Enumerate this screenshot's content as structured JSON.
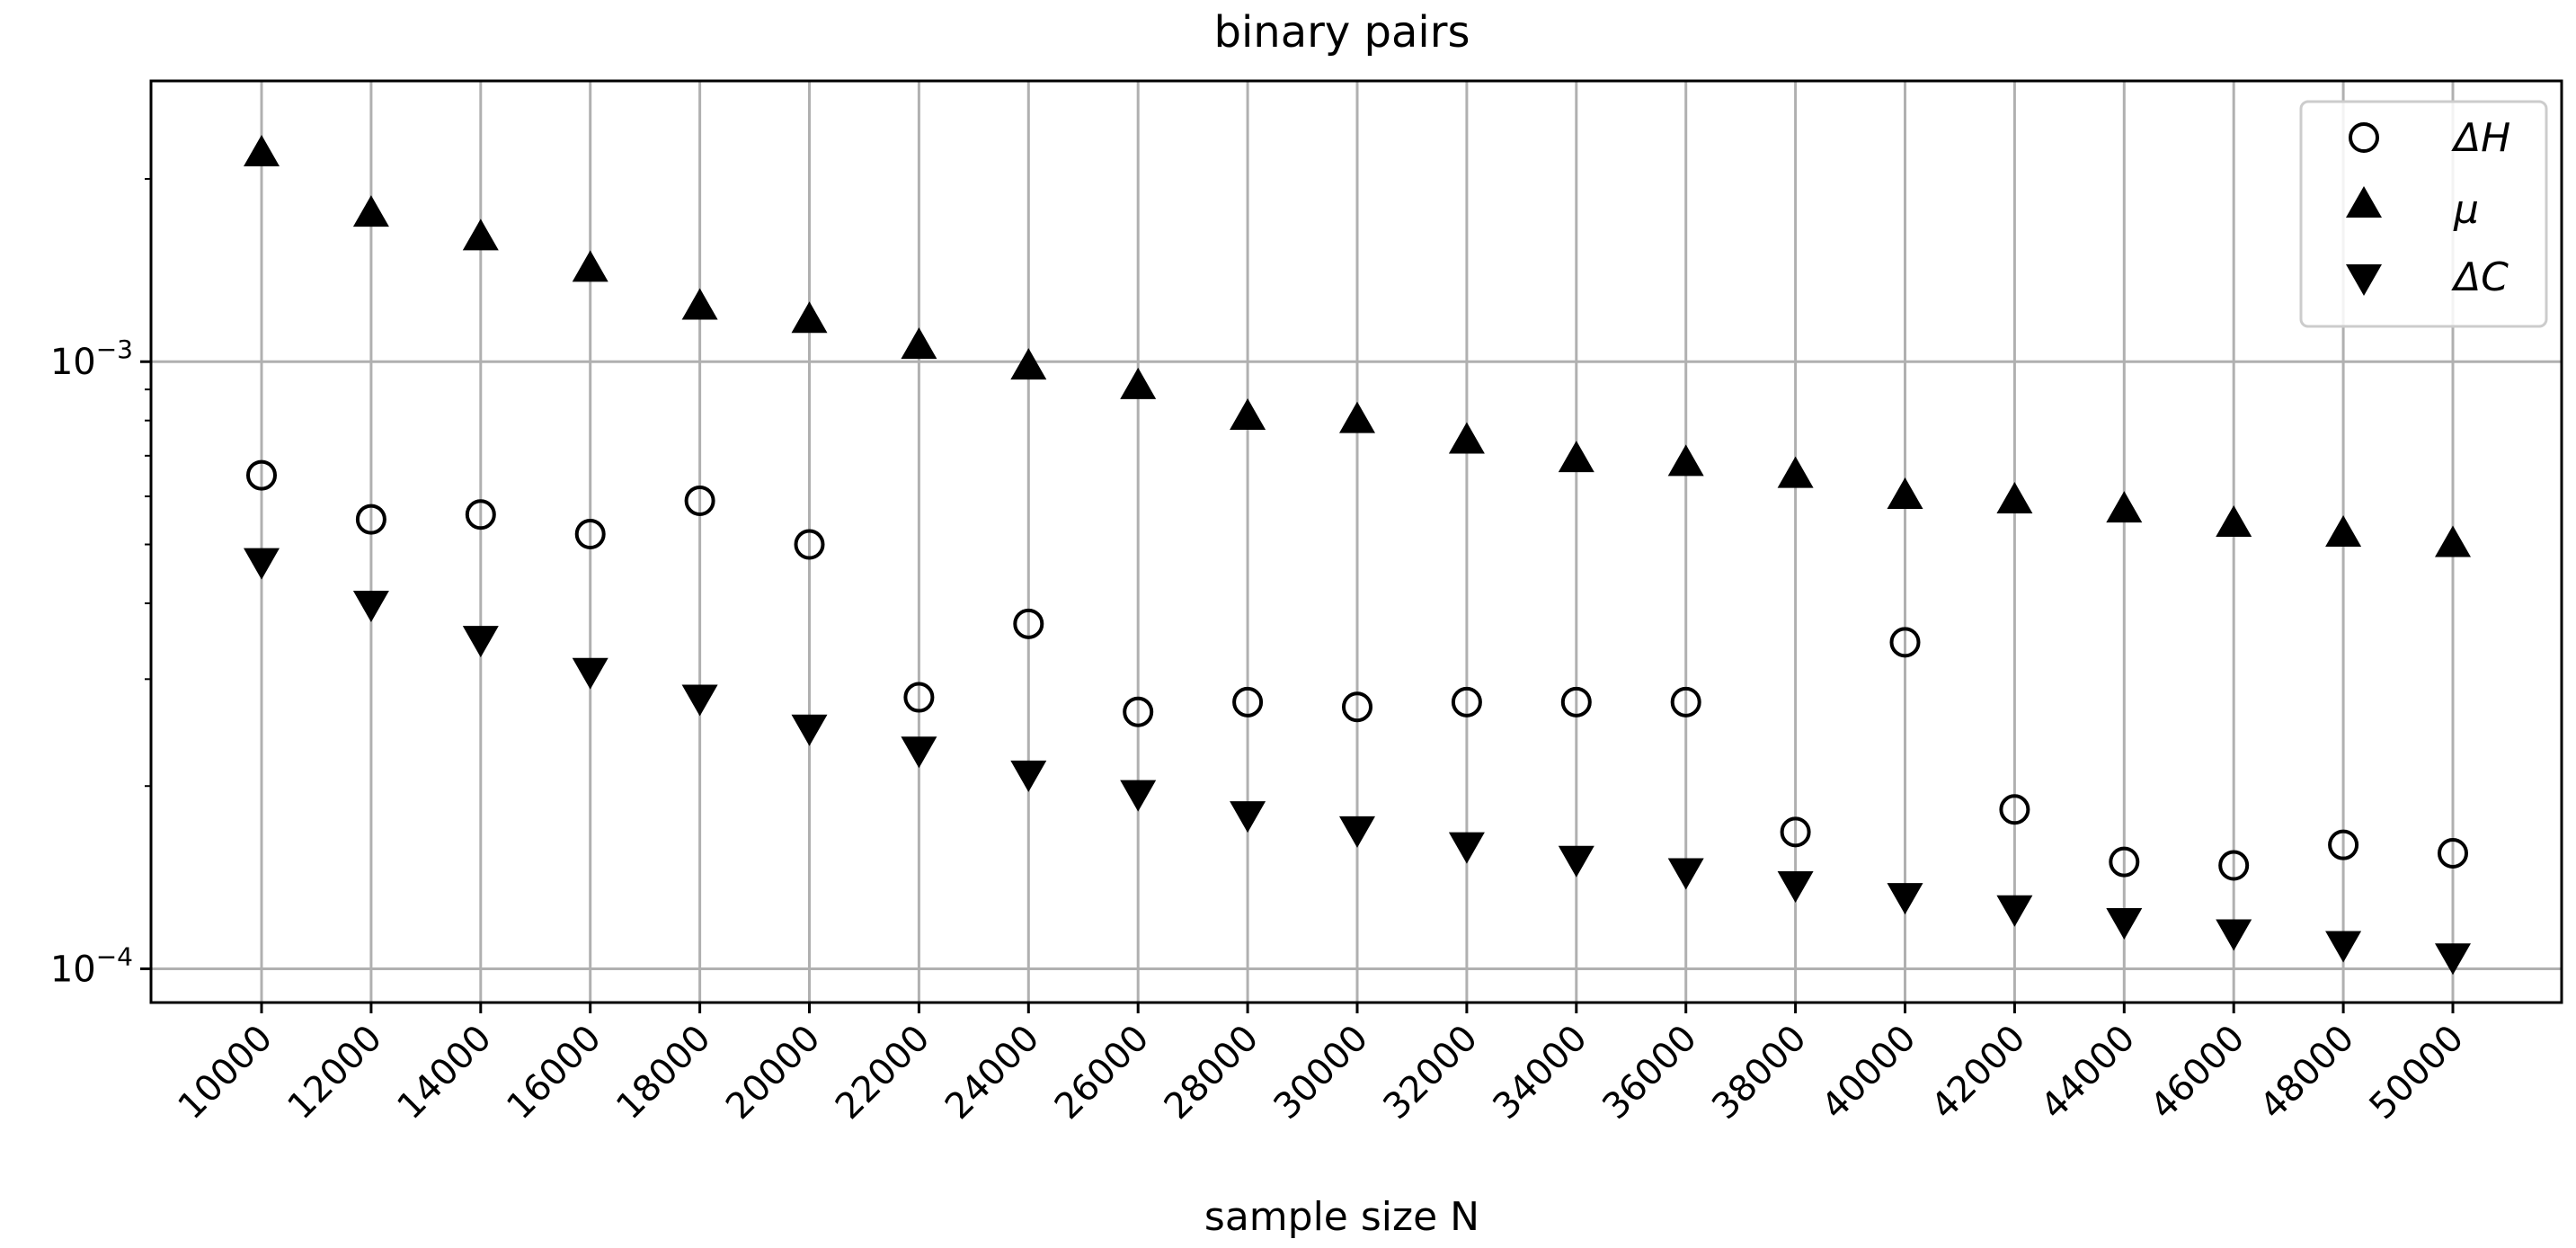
{
  "chart_data": {
    "type": "scatter",
    "title": "binary pairs",
    "xlabel": "sample size N",
    "ylabel": "",
    "yscale": "log",
    "ylim": [
      8.8e-05,
      0.0029
    ],
    "y_ticks": [
      {
        "value": 0.001,
        "base": "10",
        "exp": "−3"
      },
      {
        "value": 0.0001,
        "base": "10",
        "exp": "−4"
      }
    ],
    "grid": true,
    "legend_position": "top-right",
    "categories": [
      "10000",
      "12000",
      "14000",
      "16000",
      "18000",
      "20000",
      "22000",
      "24000",
      "26000",
      "28000",
      "30000",
      "32000",
      "34000",
      "36000",
      "38000",
      "40000",
      "42000",
      "44000",
      "46000",
      "48000",
      "50000"
    ],
    "series": [
      {
        "name": "ΔH",
        "marker": "circle",
        "values": [
          0.00065,
          0.00055,
          0.00056,
          0.00052,
          0.00059,
          0.0005,
          0.00028,
          0.00037,
          0.000265,
          0.000275,
          0.00027,
          0.000275,
          0.000275,
          0.000275,
          0.000168,
          0.000345,
          0.000183,
          0.00015,
          0.000148,
          0.00016,
          0.000155
        ]
      },
      {
        "name": "μ",
        "marker": "triangle-up",
        "values": [
          0.0022,
          0.00175,
          0.0016,
          0.00142,
          0.00123,
          0.00117,
          0.00106,
          0.00098,
          0.00091,
          0.00081,
          0.0008,
          0.00074,
          0.00069,
          0.00068,
          0.00065,
          0.0006,
          0.00059,
          0.00057,
          0.00054,
          0.00052,
          0.0005
        ]
      },
      {
        "name": "ΔC",
        "marker": "triangle-down",
        "values": [
          0.00047,
          0.0004,
          0.00035,
          0.00031,
          0.00028,
          0.00025,
          0.00023,
          0.00021,
          0.000195,
          0.00018,
          0.00017,
          0.00016,
          0.000152,
          0.000145,
          0.000138,
          0.000132,
          0.000126,
          0.00012,
          0.000115,
          0.00011,
          0.000105
        ]
      }
    ]
  }
}
